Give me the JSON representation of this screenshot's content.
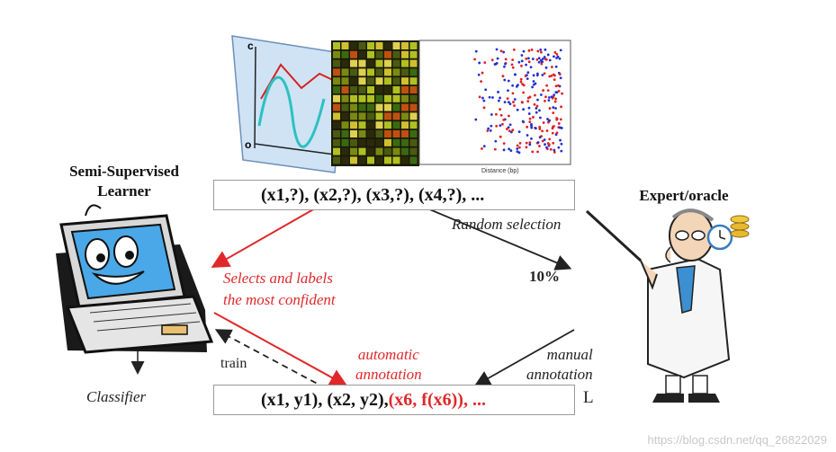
{
  "learner": {
    "title_line1": "Semi-Supervised",
    "title_line2": "Learner",
    "output": "Classifier"
  },
  "expert": {
    "title": "Expert/oracle"
  },
  "unlabeled_box": {
    "text": "(x1,?), (x2,?), (x3,?), (x4,?), ..."
  },
  "labeled_box": {
    "part1": "(x1, y1), (x2, y2), ",
    "part2": "(x6, f(x6)), ...",
    "suffix": "L"
  },
  "arrows": {
    "random_selection": "Random selection",
    "percent": "10%",
    "selects_line1": "Selects and labels",
    "selects_line2": "the most confident",
    "automatic_line1": "automatic",
    "automatic_line2": "annotation",
    "manual_line1": "manual",
    "manual_line2": "annotation",
    "train": "train"
  },
  "colors": {
    "red": "#e0282a",
    "dark": "#222222"
  },
  "watermark": "https://blog.csdn.net/qq_26822029"
}
